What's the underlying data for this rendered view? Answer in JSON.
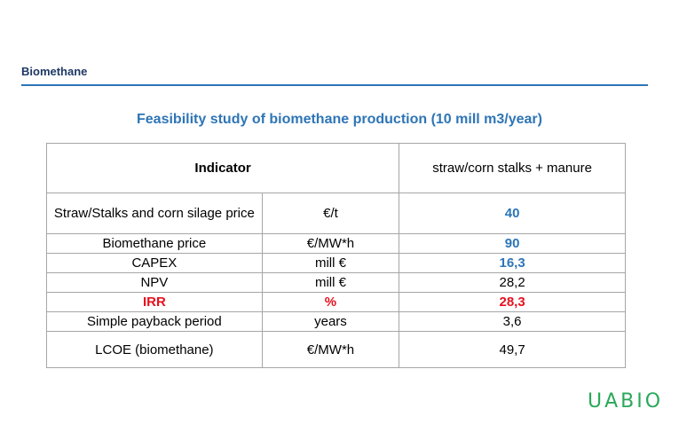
{
  "header": {
    "section_title": "Biomethane"
  },
  "main_title": "Feasibility study of biomethane production (10 mill m3/year)",
  "table": {
    "header": {
      "indicator": "Indicator",
      "scenario": "straw/corn stalks + manure"
    },
    "rows": [
      {
        "indicator": "Straw/Stalks and corn silage price",
        "unit": "€/t",
        "value": "40",
        "value_style": "blue"
      },
      {
        "indicator": "Biomethane price",
        "unit": "€/MW*h",
        "value": "90",
        "value_style": "blue"
      },
      {
        "indicator": "CAPEX",
        "unit": "mill €",
        "value": "16,3",
        "value_style": "blue"
      },
      {
        "indicator": "NPV",
        "unit": "mill €",
        "value": "28,2",
        "value_style": "normal"
      },
      {
        "indicator": "IRR",
        "unit": "%",
        "value": "28,3",
        "value_style": "red"
      },
      {
        "indicator": "Simple payback period",
        "unit": "years",
        "value": "3,6",
        "value_style": "normal"
      },
      {
        "indicator": "LCOE (biomethane)",
        "unit": "€/MW*h",
        "value": "49,7",
        "value_style": "normal"
      }
    ]
  },
  "logo": {
    "text": "UABIO"
  },
  "colors": {
    "accent_blue": "#2e75b6",
    "header_navy": "#1f3864",
    "highlight_red": "#e8111e",
    "logo_green": "#2aa85a"
  }
}
